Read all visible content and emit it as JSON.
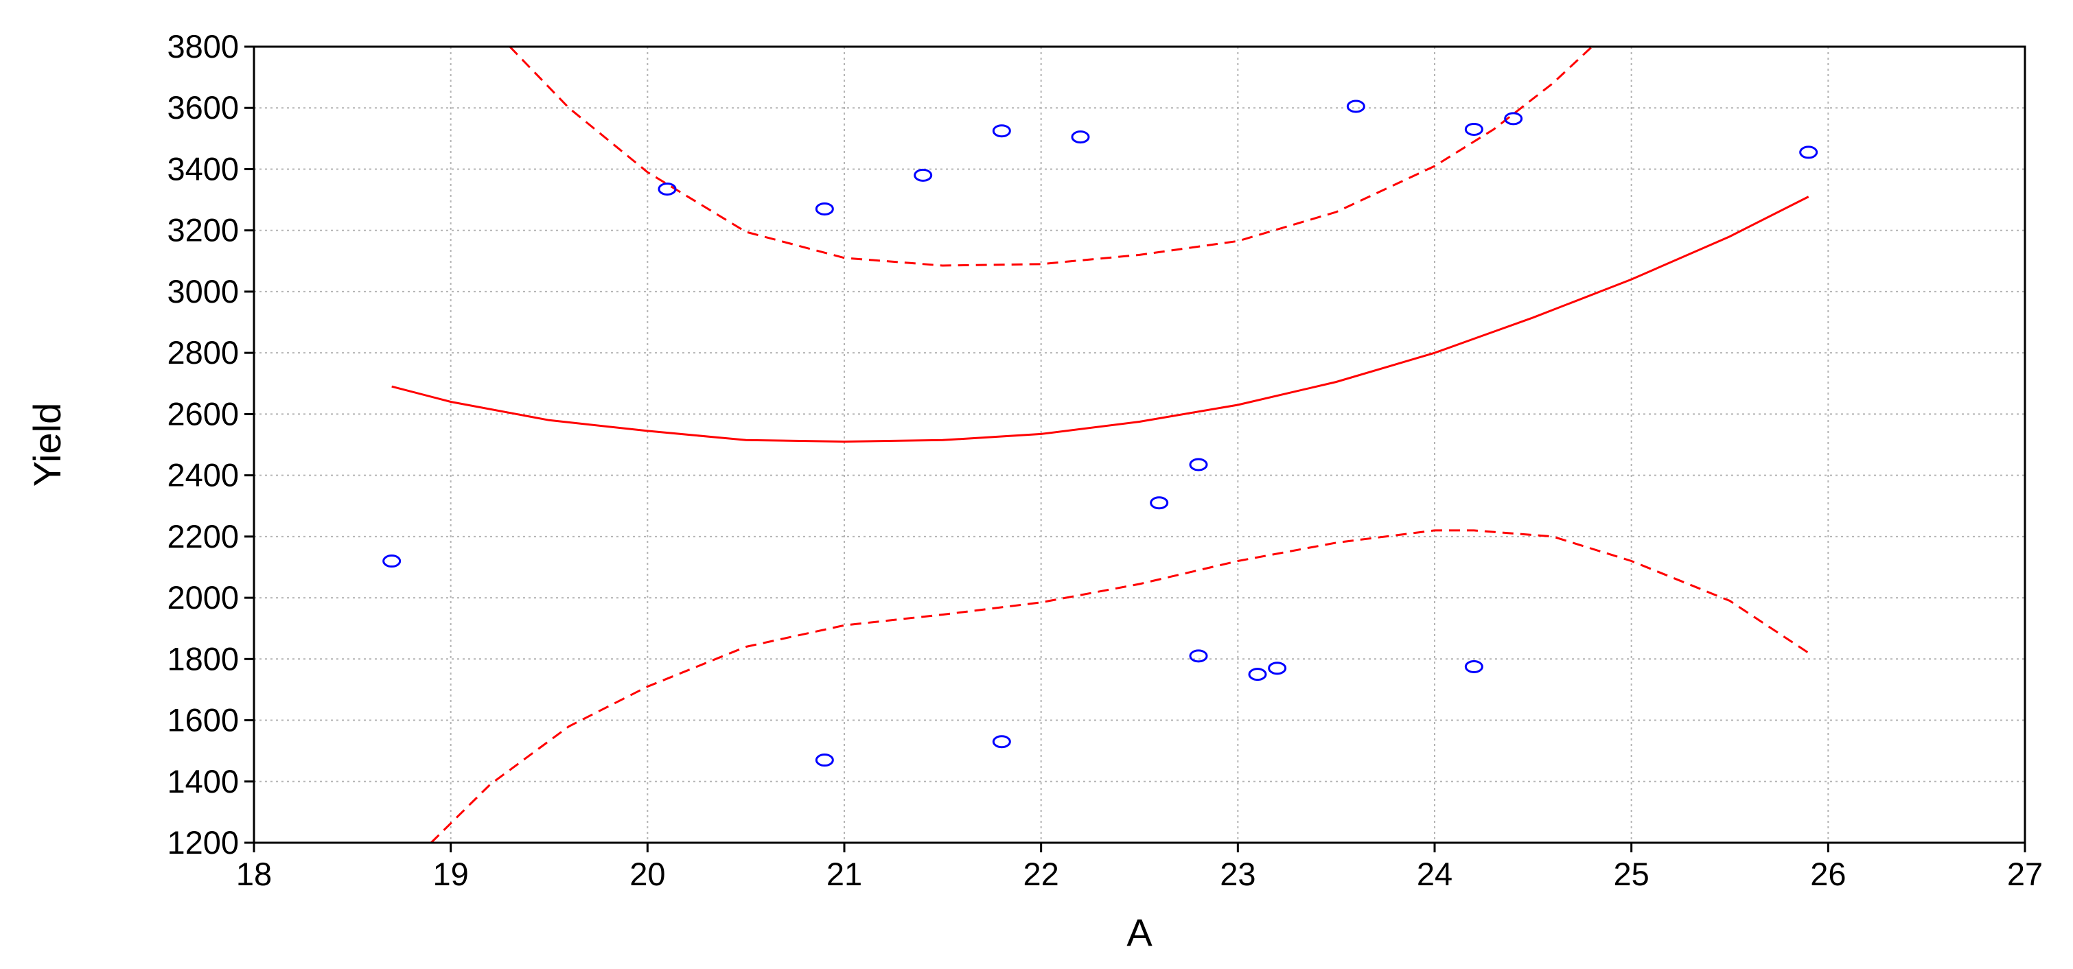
{
  "chart_data": {
    "type": "scatter",
    "title": "",
    "xlabel": "A",
    "ylabel": "Yield",
    "xlim": [
      18,
      27
    ],
    "ylim": [
      1200,
      3800
    ],
    "xticks": [
      18,
      19,
      20,
      21,
      22,
      23,
      24,
      25,
      26,
      27
    ],
    "yticks": [
      1200,
      1400,
      1600,
      1800,
      2000,
      2200,
      2400,
      2600,
      2800,
      3000,
      3200,
      3400,
      3600,
      3800
    ],
    "grid": true,
    "legend": "none",
    "colors": {
      "points": "#0000ff",
      "fit": "#ff0000",
      "axes": "#000000",
      "grid": "#b4b4b4"
    },
    "points": [
      {
        "x": 18.7,
        "y": 2120
      },
      {
        "x": 20.1,
        "y": 3335
      },
      {
        "x": 20.9,
        "y": 3270
      },
      {
        "x": 20.9,
        "y": 1470
      },
      {
        "x": 21.4,
        "y": 3380
      },
      {
        "x": 21.8,
        "y": 3525
      },
      {
        "x": 21.8,
        "y": 1530
      },
      {
        "x": 22.2,
        "y": 3505
      },
      {
        "x": 22.6,
        "y": 2310
      },
      {
        "x": 22.8,
        "y": 2435
      },
      {
        "x": 22.8,
        "y": 1810
      },
      {
        "x": 23.1,
        "y": 1750
      },
      {
        "x": 23.2,
        "y": 1770
      },
      {
        "x": 23.6,
        "y": 3605
      },
      {
        "x": 24.2,
        "y": 3530
      },
      {
        "x": 24.2,
        "y": 1775
      },
      {
        "x": 24.4,
        "y": 3565
      },
      {
        "x": 25.9,
        "y": 3455
      }
    ],
    "fit_line": {
      "style": "solid",
      "x": [
        18.7,
        19.0,
        19.5,
        20.0,
        20.5,
        21.0,
        21.5,
        22.0,
        22.5,
        23.0,
        23.5,
        24.0,
        24.5,
        25.0,
        25.5,
        25.9
      ],
      "y": [
        2690,
        2640,
        2580,
        2545,
        2515,
        2510,
        2515,
        2535,
        2575,
        2630,
        2705,
        2800,
        2915,
        3040,
        3180,
        3310
      ]
    },
    "confidence_band_upper": {
      "style": "dashed",
      "x": [
        19.3,
        19.6,
        20.0,
        20.5,
        21.0,
        21.5,
        22.0,
        22.5,
        23.0,
        23.5,
        24.0,
        24.3,
        24.6,
        24.8
      ],
      "y": [
        3800,
        3600,
        3390,
        3195,
        3110,
        3085,
        3090,
        3120,
        3165,
        3260,
        3410,
        3530,
        3680,
        3800
      ]
    },
    "confidence_band_lower": {
      "style": "dashed",
      "x": [
        18.9,
        19.2,
        19.6,
        20.0,
        20.5,
        21.0,
        21.5,
        22.0,
        22.5,
        23.0,
        23.5,
        24.0,
        24.2,
        24.6,
        25.0,
        25.5,
        25.9
      ],
      "y": [
        1200,
        1390,
        1580,
        1710,
        1840,
        1910,
        1945,
        1985,
        2045,
        2120,
        2180,
        2220,
        2220,
        2200,
        2120,
        1990,
        1820
      ]
    }
  }
}
